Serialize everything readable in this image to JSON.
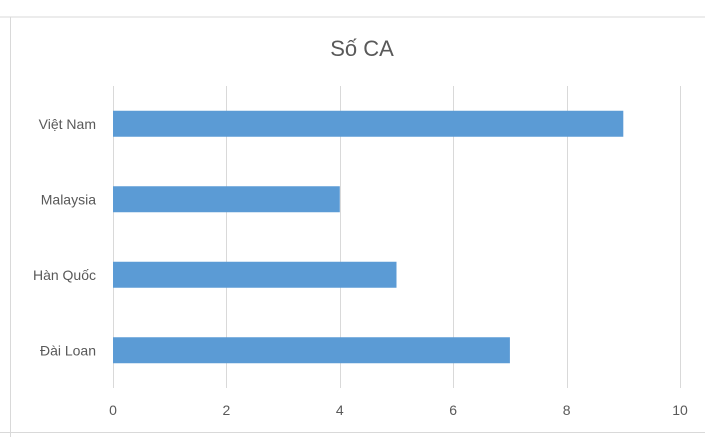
{
  "chart_data": {
    "type": "bar",
    "orientation": "horizontal",
    "title": "Số CA",
    "categories": [
      "Việt Nam",
      "Malaysia",
      "Hàn Quốc",
      "Đài Loan"
    ],
    "values": [
      9,
      4,
      5,
      7
    ],
    "xlim": [
      0,
      10
    ],
    "x_ticks": [
      0,
      2,
      4,
      6,
      8,
      10
    ],
    "grid": "vertical",
    "legend": "none",
    "colors": {
      "bar": "#5b9bd5",
      "grid": "#d9d9d9",
      "text": "#595959",
      "frame": "#d9d9d9"
    }
  }
}
